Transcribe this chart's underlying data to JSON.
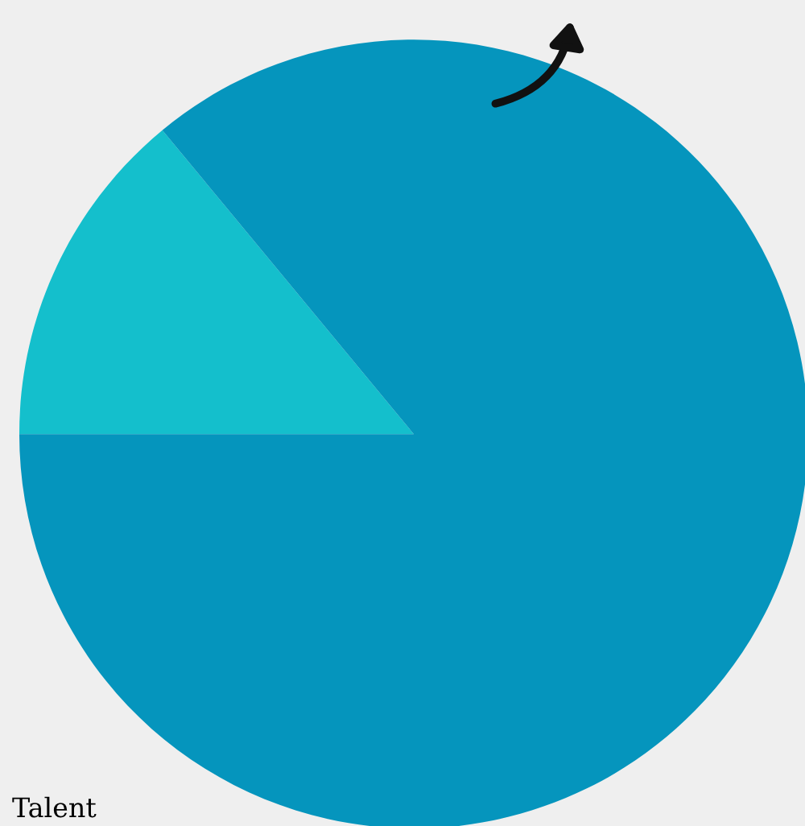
{
  "chart_data": {
    "type": "pie",
    "categories": [
      null,
      null
    ],
    "values": [
      14,
      86
    ],
    "colors": [
      "#14bfcc",
      "#0595bd"
    ],
    "annotations": [
      "Talent"
    ]
  }
}
